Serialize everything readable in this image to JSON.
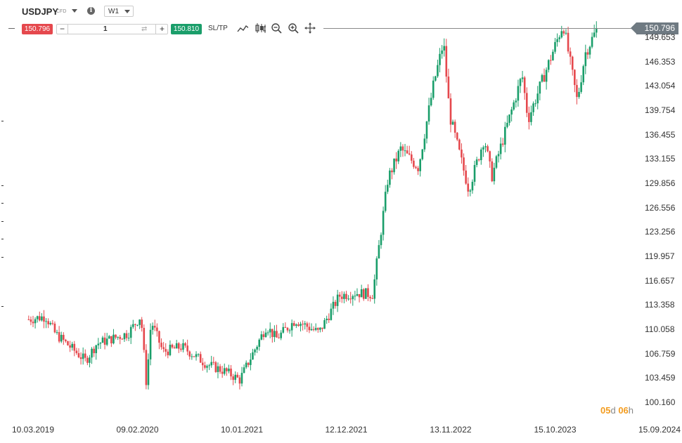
{
  "header": {
    "symbol": "USDJPY",
    "instrument_type": "CFD",
    "info_icon": "i",
    "timeframe": "W1"
  },
  "trade_bar": {
    "sell_price": "150.796",
    "quantity": "1",
    "minus": "−",
    "plus": "+",
    "buy_price": "150.810",
    "sltp_label": "SL/TP"
  },
  "tools": [
    "line-chart-icon",
    "candlestick-icon",
    "zoom-out-icon",
    "zoom-in-icon",
    "move-icon"
  ],
  "current_price_label": "150.796",
  "countdown": {
    "d_value": "05",
    "d_unit": "d",
    "h_value": "06",
    "h_unit": "h"
  },
  "colors": {
    "up": "#1a9e6a",
    "down": "#e5484d",
    "sell": "#e5484d",
    "buy": "#1a9e6a",
    "countdown": "#f39c1f"
  },
  "chart_data": {
    "type": "candlestick",
    "y_ticks": [
      "149.653",
      "146.353",
      "143.054",
      "139.754",
      "136.455",
      "133.155",
      "129.856",
      "126.556",
      "123.256",
      "119.957",
      "116.657",
      "113.358",
      "110.058",
      "106.759",
      "103.459",
      "100.160"
    ],
    "x_ticks": [
      "10.03.2019",
      "09.02.2020",
      "10.01.2021",
      "12.12.2021",
      "13.11.2022",
      "15.10.2023",
      "15.09.2024"
    ],
    "ylim": [
      100.16,
      151.2
    ],
    "current_price": 150.796,
    "waypoints": [
      {
        "date": "2019-02-24",
        "close": 111.4
      },
      {
        "date": "2019-04-20",
        "close": 111.8
      },
      {
        "date": "2019-05-20",
        "close": 109.5
      },
      {
        "date": "2019-08-26",
        "close": 105.8
      },
      {
        "date": "2019-10-01",
        "close": 108.1
      },
      {
        "date": "2020-01-10",
        "close": 109.5
      },
      {
        "date": "2020-02-20",
        "close": 111.9
      },
      {
        "date": "2020-03-09",
        "close": 102.5
      },
      {
        "date": "2020-03-24",
        "close": 111.2
      },
      {
        "date": "2020-05-01",
        "close": 107.0
      },
      {
        "date": "2020-07-01",
        "close": 107.7
      },
      {
        "date": "2020-09-20",
        "close": 105.3
      },
      {
        "date": "2020-11-20",
        "close": 104.3
      },
      {
        "date": "2021-01-03",
        "close": 103.2
      },
      {
        "date": "2021-03-30",
        "close": 110.5
      },
      {
        "date": "2021-05-01",
        "close": 108.8
      },
      {
        "date": "2021-07-01",
        "close": 111.3
      },
      {
        "date": "2021-09-15",
        "close": 109.6
      },
      {
        "date": "2021-11-20",
        "close": 114.6
      },
      {
        "date": "2022-01-10",
        "close": 115.0
      },
      {
        "date": "2022-03-07",
        "close": 114.8
      },
      {
        "date": "2022-04-25",
        "close": 130.5
      },
      {
        "date": "2022-06-05",
        "close": 134.5
      },
      {
        "date": "2022-08-01",
        "close": 132.0
      },
      {
        "date": "2022-09-20",
        "close": 143.5
      },
      {
        "date": "2022-10-21",
        "close": 149.0
      },
      {
        "date": "2022-11-10",
        "close": 139.0
      },
      {
        "date": "2023-01-10",
        "close": 129.0
      },
      {
        "date": "2023-03-01",
        "close": 136.0
      },
      {
        "date": "2023-03-25",
        "close": 130.7
      },
      {
        "date": "2023-07-01",
        "close": 144.5
      },
      {
        "date": "2023-07-20",
        "close": 138.5
      },
      {
        "date": "2023-11-10",
        "close": 151.5
      },
      {
        "date": "2023-12-25",
        "close": 141.0
      },
      {
        "date": "2024-01-20",
        "close": 147.5
      },
      {
        "date": "2024-02-27",
        "close": 150.8
      }
    ]
  }
}
